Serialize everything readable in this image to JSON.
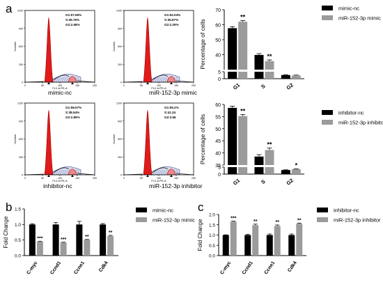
{
  "panel_letters": [
    "a",
    "b",
    "c"
  ],
  "flow_histograms": [
    {
      "caption": "mimic-nc",
      "stats": [
        "G1:57.66%",
        "S:39.76%",
        "G2:2.58%"
      ]
    },
    {
      "caption": "miR-152-3p mimic",
      "stats": [
        "G1:62.04%",
        "S:35.67%",
        "G2:2.29%"
      ]
    },
    {
      "caption": "inhibitor-nc",
      "stats": [
        "G1:58.57%",
        "S:38.54%",
        "G2:2.89%"
      ]
    },
    {
      "caption": "miR-152-3p inhibitor",
      "stats": [
        "G1:55.2%",
        "S:41.24",
        "G2:3.56"
      ]
    }
  ],
  "flow_axes": {
    "ylabel": "Number",
    "xlabel": "FL2-A:PE-A",
    "y_ticks": [
      "0",
      "300",
      "600",
      "900",
      "1200"
    ],
    "x_ticks": [
      "0",
      "50",
      "100",
      "150",
      "200"
    ]
  },
  "colors": {
    "black": "#000000",
    "gray": "#9b9b9b",
    "red": "#e11a1a"
  },
  "chart_data": [
    {
      "id": "a_top",
      "type": "bar",
      "title": "",
      "xlabel": "",
      "ylabel": "Percentage of cells",
      "categories": [
        "G1",
        "S",
        "G2"
      ],
      "series": [
        {
          "name": "mimic-nc",
          "values": [
            57.7,
            39.8,
            2.6
          ],
          "errors": [
            1.0,
            0.9,
            0.3
          ]
        },
        {
          "name": "miR-152-3p mimic",
          "values": [
            62.0,
            35.7,
            2.3
          ],
          "errors": [
            0.8,
            0.8,
            0.3
          ]
        }
      ],
      "significance": [
        [
          "",
          "**"
        ],
        [
          "",
          "**"
        ],
        [
          "",
          ""
        ]
      ],
      "broken_axis": {
        "lower_ylim": [
          0,
          5
        ],
        "upper_ylim": [
          30,
          70
        ],
        "lower_ticks": [
          0,
          5
        ],
        "upper_ticks": [
          40,
          50,
          60,
          70
        ]
      },
      "legend": "right"
    },
    {
      "id": "a_bottom",
      "type": "bar",
      "title": "",
      "xlabel": "",
      "ylabel": "Percentage of cells",
      "categories": [
        "G1",
        "S",
        "G2"
      ],
      "series": [
        {
          "name": "inhibitor-nc",
          "values": [
            58.6,
            38.5,
            2.9
          ],
          "errors": [
            0.7,
            0.8,
            0.2
          ]
        },
        {
          "name": "miR-152-3p inhibitor",
          "values": [
            55.2,
            41.2,
            3.6
          ],
          "errors": [
            0.6,
            0.8,
            0.2
          ]
        }
      ],
      "significance": [
        [
          "",
          "**"
        ],
        [
          "",
          "**"
        ],
        [
          "",
          "*"
        ]
      ],
      "broken_axis": {
        "lower_ylim": [
          0,
          5
        ],
        "upper_ylim": [
          35,
          60
        ],
        "lower_ticks": [
          0,
          5
        ],
        "upper_ticks": [
          35,
          40,
          45,
          50,
          55,
          60
        ]
      },
      "legend": "right"
    },
    {
      "id": "b",
      "type": "bar",
      "title": "",
      "xlabel": "",
      "ylabel": "Fold Change",
      "categories": [
        "C-myc",
        "Ccnd1",
        "Ccne1",
        "Cdk4"
      ],
      "series": [
        {
          "name": "mimic-nc",
          "values": [
            1.0,
            1.0,
            1.0,
            1.0
          ],
          "errors": [
            0.02,
            0.06,
            0.1,
            0.03
          ]
        },
        {
          "name": "miR-152-3p mimic",
          "values": [
            0.45,
            0.42,
            0.51,
            0.63
          ],
          "errors": [
            0.01,
            0.01,
            0.01,
            0.02
          ]
        }
      ],
      "significance": [
        [
          "",
          "***"
        ],
        [
          "",
          "***"
        ],
        [
          "",
          "**"
        ],
        [
          "",
          "**"
        ]
      ],
      "ylim": [
        0,
        1.5
      ],
      "yticks": [
        "0.0",
        "0.5",
        "1.0",
        "1.5"
      ],
      "legend": "right"
    },
    {
      "id": "c",
      "type": "bar",
      "title": "",
      "xlabel": "",
      "ylabel": "Fold Change",
      "categories": [
        "C-myc",
        "Ccnd1",
        "Ccne1",
        "Cdk4"
      ],
      "series": [
        {
          "name": "inhibitor-nc",
          "values": [
            1.0,
            1.0,
            1.0,
            1.0
          ],
          "errors": [
            0.01,
            0.03,
            0.05,
            0.05
          ]
        },
        {
          "name": "miR-152-3p inhibitor",
          "values": [
            1.65,
            1.48,
            1.44,
            1.55
          ],
          "errors": [
            0.03,
            0.05,
            0.05,
            0.03
          ]
        }
      ],
      "significance": [
        [
          "",
          "***"
        ],
        [
          "",
          "**"
        ],
        [
          "",
          "**"
        ],
        [
          "",
          "**"
        ]
      ],
      "ylim": [
        0,
        2.0
      ],
      "yticks": [
        "0.0",
        "0.5",
        "1.0",
        "1.5",
        "2.0"
      ],
      "legend": "right"
    }
  ]
}
